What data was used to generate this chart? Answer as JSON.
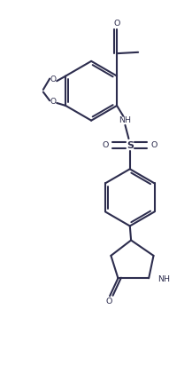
{
  "background_color": "#ffffff",
  "bond_color": "#2d2d4e",
  "line_width": 1.5,
  "figsize": [
    2.17,
    4.29
  ],
  "dpi": 100,
  "xlim": [
    0,
    8
  ],
  "ylim": [
    0,
    16
  ]
}
